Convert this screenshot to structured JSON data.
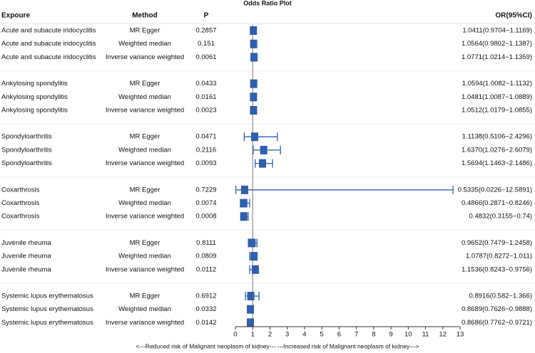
{
  "chart_data": {
    "type": "forest",
    "title": "Odds Ratio Plot",
    "columns": [
      "Expoure",
      "Method",
      "P",
      "OR(95%CI)"
    ],
    "categories": [
      "Acute and subacute iridocyclitis",
      "Acute and subacute iridocyclitis",
      "Acute and subacute iridocyclitis",
      "Ankylosing spondylitis",
      "Ankylosing spondylitis",
      "Ankylosing spondylitis",
      "Spondyloarthritis",
      "Spondyloarthritis",
      "Spondyloarthritis",
      "Coxarthrosis",
      "Coxarthrosis",
      "Coxarthrosis",
      "Juvenile rheuma",
      "Juvenile rheuma",
      "Juvenile rheuma",
      "Systemic lupus erythematosus",
      "Systemic lupus erythematosus",
      "Systemic lupus erythematosus"
    ],
    "methods": [
      "MR Egger",
      "Weighted median",
      "Inverse variance weighted",
      "MR Egger",
      "Weighted median",
      "Inverse variance weighted",
      "MR Egger",
      "Weighted median",
      "Inverse variance weighted",
      "MR Egger",
      "Weighted median",
      "Inverse variance weighted",
      "MR Egger",
      "Weighted median",
      "Inverse variance weighted",
      "MR Egger",
      "Weighted median",
      "Inverse variance weighted"
    ],
    "p": [
      0.2857,
      0.151,
      0.0061,
      0.0433,
      0.0161,
      0.0023,
      0.0471,
      0.2116,
      0.0093,
      0.7229,
      0.0074,
      0.0008,
      0.8111,
      0.0809,
      0.0112,
      0.6912,
      0.0332,
      0.0142
    ],
    "values": [
      1.0411,
      1.0564,
      1.0771,
      1.0594,
      1.0481,
      1.0512,
      1.1138,
      1.637,
      1.5694,
      0.5335,
      0.4866,
      0.4832,
      0.9652,
      1.0787,
      1.1536,
      0.8916,
      0.8689,
      0.8686
    ],
    "lower": [
      0.9704,
      0.9802,
      1.0214,
      1.0082,
      1.0087,
      1.0179,
      0.5106,
      1.0276,
      1.1463,
      0.0226,
      0.2871,
      0.3155,
      0.7479,
      0.8272,
      0.8243,
      0.582,
      0.7626,
      0.7762
    ],
    "upper": [
      1.1169,
      1.1387,
      1.1359,
      1.1132,
      1.0889,
      1.0855,
      2.4296,
      2.6079,
      2.1486,
      12.5891,
      0.8246,
      0.74,
      1.2458,
      1.011,
      0.9756,
      1.366,
      0.9888,
      0.9721
    ],
    "value_labels": [
      "1.0411(0.9704~1.1169)",
      "1.0564(0.9802~1.1387)",
      "1.0771(1.0214~1.1359)",
      "1.0594(1.0082~1.1132)",
      "1.0481(1.0087~1.0889)",
      "1.0512(1.0179~1.0855)",
      "1.1138(0.5106~2.4296)",
      "1.6370(1.0276~2.6079)",
      "1.5694(1.1463~2.1486)",
      "0.5335(0.0226~12.5891)",
      "0.4866(0.2871~0.8246)",
      "0.4832(0.3155~0.74)",
      "0.9652(0.7479~1.2458)",
      "1.0787(0.8272~1.011)",
      "1.1536(0.8243~0.9756)",
      "0.8916(0.582~1.366)",
      "0.8689(0.7626~0.9888)",
      "0.8686(0.7762~0.9721)"
    ],
    "xlim": [
      0,
      13
    ],
    "xticks": [
      0,
      1,
      2,
      3,
      4,
      5,
      6,
      7,
      8,
      9,
      10,
      11,
      12,
      13
    ],
    "reference_line": 1,
    "xlabel": "<---Reduced risk of Malignant neoplasm of kidney--- ---Increased risk of Malignant neoplasm of kidney--->",
    "color": "#2f5fad"
  }
}
